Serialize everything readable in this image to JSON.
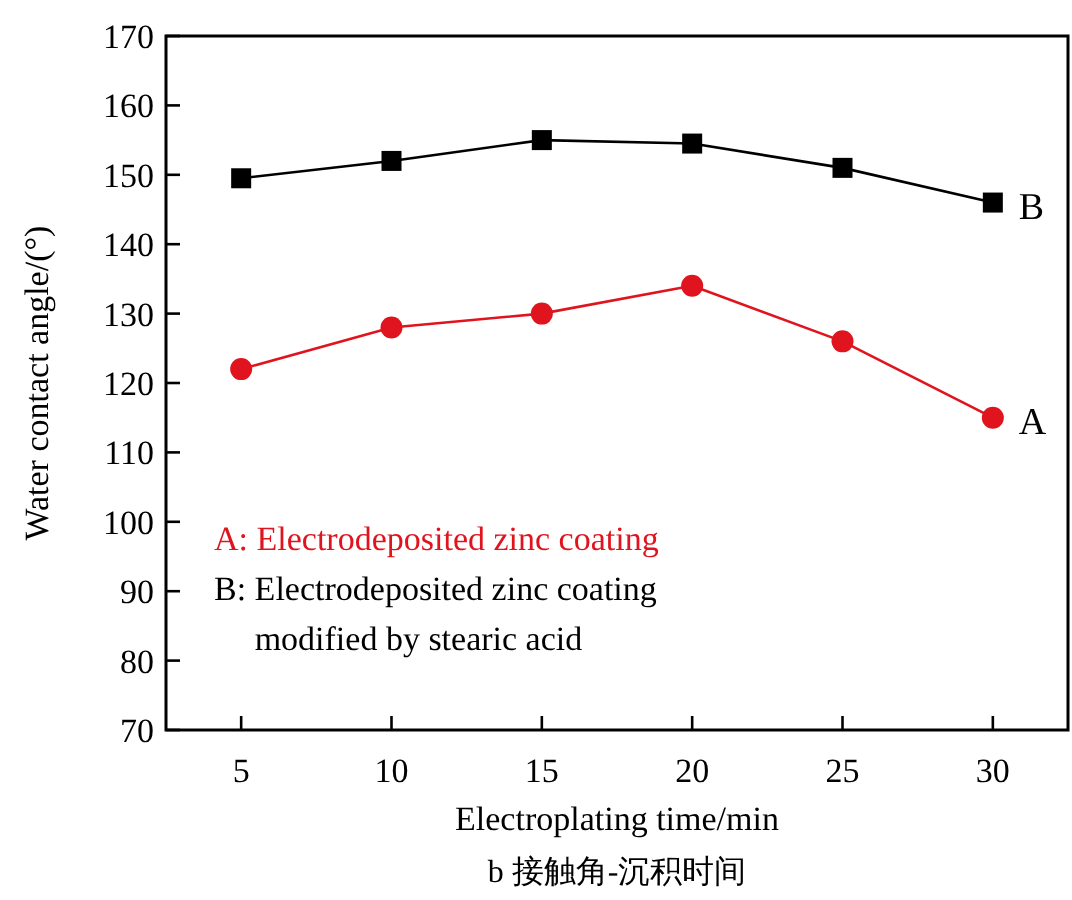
{
  "chart_data": {
    "type": "line",
    "title": "b 接触角-沉积时间",
    "xlabel": "Electroplating time/min",
    "ylabel": "Water contact angle/(°)",
    "x": [
      5,
      10,
      15,
      20,
      25,
      30
    ],
    "series": [
      {
        "name": "B",
        "color": "#000000",
        "marker": "square",
        "values": [
          149.5,
          152,
          155,
          154.5,
          151,
          146
        ]
      },
      {
        "name": "A",
        "color": "#e0141e",
        "marker": "circle",
        "values": [
          122,
          128,
          130,
          134,
          126,
          115
        ]
      }
    ],
    "annotations": [
      "B: Electrodeposited zinc coating\nmodified by stearic acid",
      "A: Electrodeposited zinc coating"
    ],
    "xlim": [
      2.5,
      32.5
    ],
    "xticks": [
      5,
      10,
      15,
      20,
      25,
      30
    ],
    "ylim": [
      70,
      170
    ],
    "yticks": [
      70,
      80,
      90,
      100,
      110,
      120,
      130,
      140,
      150,
      160,
      170
    ],
    "grid": false
  }
}
